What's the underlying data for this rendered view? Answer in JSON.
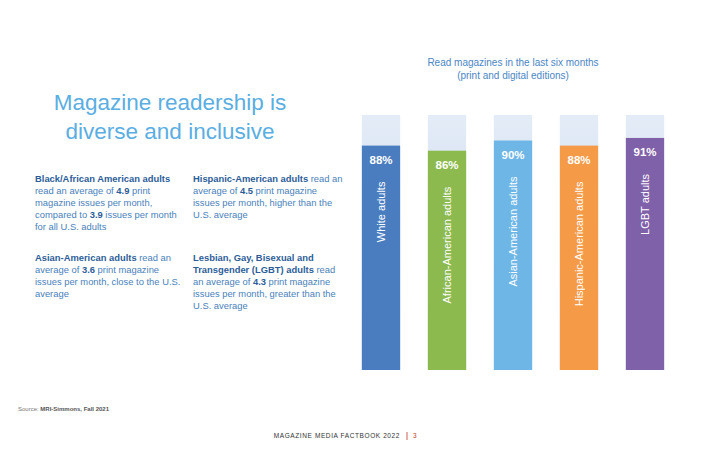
{
  "heading": [
    "Magazine readership is",
    "diverse and inclusive"
  ],
  "notes": [
    [
      {
        "strong": "Black/African American adults"
      },
      {
        "text": " read an average of "
      },
      {
        "strong": "4.9"
      },
      {
        "text": " print magazine issues per month, compared to "
      },
      {
        "strong": "3.9"
      },
      {
        "text": " issues per month for all U.S. adults"
      }
    ],
    [
      {
        "strong": "Hispanic-American adults"
      },
      {
        "text": " read an average of "
      },
      {
        "strong": "4.5"
      },
      {
        "text": " print magazine issues per month, higher than the U.S. average"
      }
    ],
    [
      {
        "strong": "Asian-American adults"
      },
      {
        "text": " read an average of "
      },
      {
        "strong": "3.6"
      },
      {
        "text": " print magazine issues per month, close to the U.S. average"
      }
    ],
    [
      {
        "strong": "Lesbian, Gay, Bisexual and Transgender (LGBT) adults"
      },
      {
        "text": " read an average of "
      },
      {
        "strong": "4.3"
      },
      {
        "text": " print magazine issues per month, greater than the U.S. average"
      }
    ]
  ],
  "source": [
    {
      "text": "Source: "
    },
    {
      "strong": "MRI-Simmons, Fall 2021"
    }
  ],
  "footer": [
    "MAGAZINE MEDIA FACTBOOK 2022",
    "3"
  ],
  "chart_data": {
    "type": "bar",
    "title": "Read magazines in the last six months",
    "subtitle": "(print and digital editions)",
    "categories": [
      "White adults",
      "African-American adults",
      "Asian-American adults",
      "Hispanic-American adults",
      "LGBT adults"
    ],
    "values": [
      88,
      86,
      90,
      88,
      91
    ],
    "value_labels": [
      "88%",
      "86%",
      "90%",
      "88%",
      "91%"
    ],
    "colors": [
      "#4a7dbf",
      "#8dba4f",
      "#6db6e6",
      "#f59a46",
      "#7f61a9"
    ],
    "ylim": [
      0,
      100
    ],
    "data_labels": true,
    "tick_labels": false,
    "grid": false
  }
}
